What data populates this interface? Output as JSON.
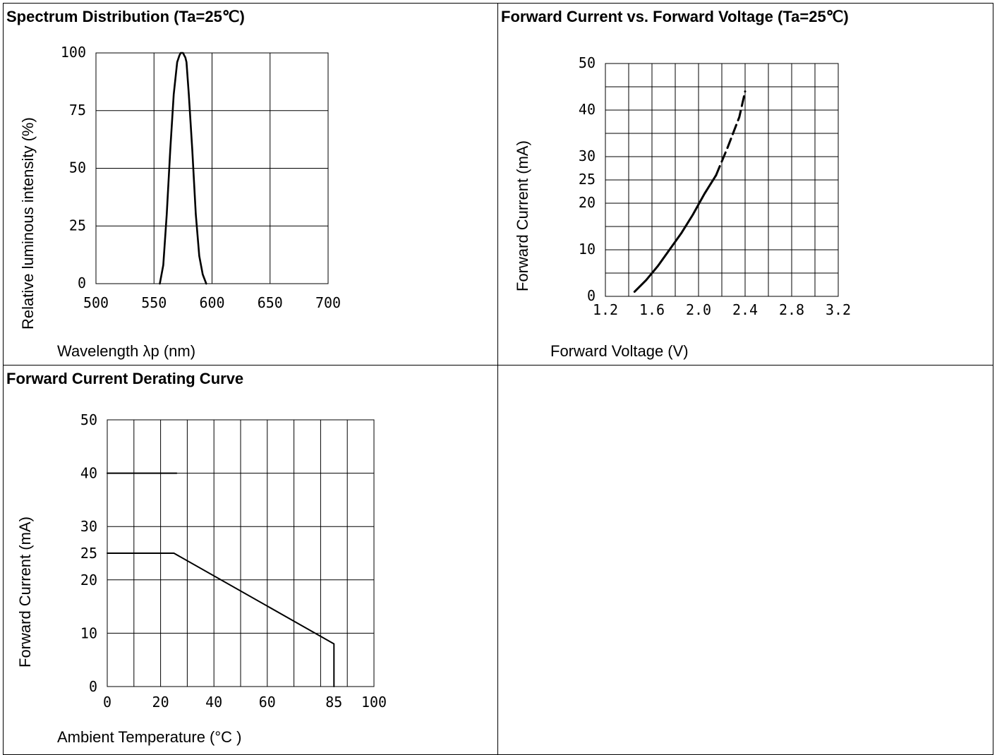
{
  "chart_data": [
    {
      "type": "line",
      "title": "Spectrum Distribution (Ta=25℃)",
      "xlabel": "Wavelength λp (nm)",
      "ylabel": "Relative luminous intensity (%)",
      "xlim": [
        500,
        700
      ],
      "ylim": [
        0,
        100
      ],
      "x_ticks": [
        "500",
        "550",
        "600",
        "650",
        "700"
      ],
      "y_ticks": [
        "0",
        "25",
        "50",
        "75",
        "100"
      ],
      "grid": true,
      "series": [
        {
          "x": [
            555,
            558,
            561,
            564,
            567,
            570,
            572,
            573,
            575,
            576,
            577,
            578,
            580,
            583,
            586,
            589,
            592,
            595
          ],
          "y": [
            0,
            8,
            30,
            58,
            82,
            96,
            99,
            100,
            100,
            99,
            98,
            96,
            82,
            58,
            30,
            12,
            4,
            0
          ]
        }
      ]
    },
    {
      "type": "line",
      "title": "Forward Current vs. Forward Voltage (Ta=25℃)",
      "xlabel": "Forward Voltage (V)",
      "ylabel": "Forward Current (mA)",
      "xlim": [
        1.2,
        3.2
      ],
      "ylim": [
        0,
        50
      ],
      "x_ticks": [
        "1.2",
        "1.6",
        "2.0",
        "2.4",
        "2.8",
        "3.2"
      ],
      "y_ticks": [
        "0",
        "10",
        "20",
        "25",
        "30",
        "40",
        "50"
      ],
      "grid": true,
      "series": [
        {
          "style": "solid",
          "x": [
            1.45,
            1.55,
            1.65,
            1.75,
            1.85,
            1.95,
            2.05,
            2.15
          ],
          "y": [
            1,
            3.5,
            6.5,
            10,
            13.5,
            17.5,
            22,
            26
          ]
        },
        {
          "style": "dashed",
          "x": [
            2.15,
            2.25,
            2.35,
            2.4
          ],
          "y": [
            26,
            32,
            38.5,
            44
          ]
        }
      ]
    },
    {
      "type": "line",
      "title": "Forward Current Derating Curve",
      "xlabel": "Ambient Temperature (°C )",
      "ylabel": "Forward Current (mA)",
      "xlim": [
        0,
        100
      ],
      "ylim": [
        0,
        50
      ],
      "x_ticks": [
        "0",
        "20",
        "40",
        "60",
        "85",
        "100"
      ],
      "y_ticks": [
        "0",
        "10",
        "20",
        "25",
        "30",
        "40",
        "50"
      ],
      "grid": true,
      "series": [
        {
          "style": "solid",
          "x": [
            0,
            25,
            85,
            85
          ],
          "y": [
            25,
            25,
            8,
            0
          ]
        },
        {
          "style": "solid",
          "x": [
            0,
            26
          ],
          "y": [
            40,
            40
          ]
        }
      ]
    }
  ]
}
